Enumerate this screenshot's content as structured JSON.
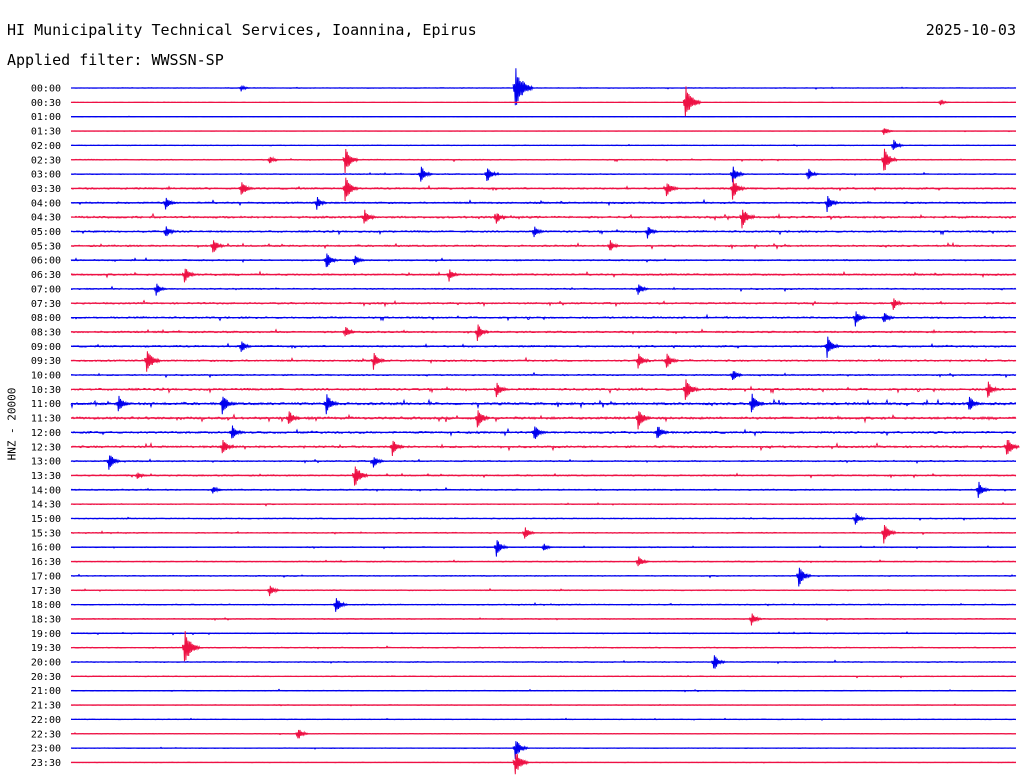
{
  "header": {
    "title": "HI Municipality Technical Services, Ioannina, Epirus",
    "date": "2025-10-03",
    "filter": "Applied filter: WWSSN-SP"
  },
  "colors": {
    "even_trace": "#0000ee",
    "odd_trace": "#ee1144",
    "text": "#000000",
    "background": "#ffffff"
  },
  "chart_data": {
    "type": "line",
    "title": "HI Municipality Technical Services, Ioannina, Epirus",
    "subtitle": "Applied filter: WWSSN-SP",
    "ylabel": "HNZ - 20000",
    "xlabel": "",
    "trace_colors": [
      "#0000ee",
      "#ee1144"
    ],
    "rows": [
      {
        "label": "00:00",
        "activity": 0.2,
        "events": [
          {
            "pos": 0.47,
            "amp": 1.0
          },
          {
            "pos": 0.18,
            "amp": 0.15
          }
        ]
      },
      {
        "label": "00:30",
        "activity": 0.1,
        "events": [
          {
            "pos": 0.65,
            "amp": 0.8
          },
          {
            "pos": 0.92,
            "amp": 0.15
          }
        ]
      },
      {
        "label": "01:00",
        "activity": 0.1,
        "events": []
      },
      {
        "label": "01:30",
        "activity": 0.12,
        "events": [
          {
            "pos": 0.86,
            "amp": 0.2
          }
        ]
      },
      {
        "label": "02:00",
        "activity": 0.2,
        "events": [
          {
            "pos": 0.87,
            "amp": 0.3
          }
        ]
      },
      {
        "label": "02:30",
        "activity": 0.3,
        "events": [
          {
            "pos": 0.29,
            "amp": 0.6
          },
          {
            "pos": 0.86,
            "amp": 0.6
          },
          {
            "pos": 0.21,
            "amp": 0.2
          }
        ]
      },
      {
        "label": "03:00",
        "activity": 0.3,
        "events": [
          {
            "pos": 0.37,
            "amp": 0.4
          },
          {
            "pos": 0.44,
            "amp": 0.4
          },
          {
            "pos": 0.7,
            "amp": 0.4
          },
          {
            "pos": 0.78,
            "amp": 0.3
          }
        ]
      },
      {
        "label": "03:30",
        "activity": 0.5,
        "events": [
          {
            "pos": 0.18,
            "amp": 0.4
          },
          {
            "pos": 0.29,
            "amp": 0.6
          },
          {
            "pos": 0.63,
            "amp": 0.4
          },
          {
            "pos": 0.7,
            "amp": 0.5
          }
        ]
      },
      {
        "label": "04:00",
        "activity": 0.5,
        "events": [
          {
            "pos": 0.1,
            "amp": 0.3
          },
          {
            "pos": 0.26,
            "amp": 0.3
          },
          {
            "pos": 0.8,
            "amp": 0.4
          }
        ]
      },
      {
        "label": "04:30",
        "activity": 0.6,
        "events": [
          {
            "pos": 0.31,
            "amp": 0.4
          },
          {
            "pos": 0.45,
            "amp": 0.3
          },
          {
            "pos": 0.71,
            "amp": 0.5
          }
        ]
      },
      {
        "label": "05:00",
        "activity": 0.5,
        "events": [
          {
            "pos": 0.1,
            "amp": 0.3
          },
          {
            "pos": 0.49,
            "amp": 0.3
          },
          {
            "pos": 0.61,
            "amp": 0.3
          }
        ]
      },
      {
        "label": "05:30",
        "activity": 0.5,
        "events": [
          {
            "pos": 0.15,
            "amp": 0.4
          },
          {
            "pos": 0.57,
            "amp": 0.3
          }
        ]
      },
      {
        "label": "06:00",
        "activity": 0.4,
        "events": [
          {
            "pos": 0.27,
            "amp": 0.4
          },
          {
            "pos": 0.3,
            "amp": 0.3
          }
        ]
      },
      {
        "label": "06:30",
        "activity": 0.5,
        "events": [
          {
            "pos": 0.12,
            "amp": 0.4
          },
          {
            "pos": 0.4,
            "amp": 0.3
          }
        ]
      },
      {
        "label": "07:00",
        "activity": 0.4,
        "events": [
          {
            "pos": 0.09,
            "amp": 0.3
          },
          {
            "pos": 0.6,
            "amp": 0.3
          }
        ]
      },
      {
        "label": "07:30",
        "activity": 0.5,
        "events": [
          {
            "pos": 0.87,
            "amp": 0.3
          }
        ]
      },
      {
        "label": "08:00",
        "activity": 0.5,
        "events": [
          {
            "pos": 0.83,
            "amp": 0.4
          },
          {
            "pos": 0.86,
            "amp": 0.3
          }
        ]
      },
      {
        "label": "08:30",
        "activity": 0.5,
        "events": [
          {
            "pos": 0.43,
            "amp": 0.4
          },
          {
            "pos": 0.29,
            "amp": 0.3
          }
        ]
      },
      {
        "label": "09:00",
        "activity": 0.5,
        "events": [
          {
            "pos": 0.18,
            "amp": 0.3
          },
          {
            "pos": 0.8,
            "amp": 0.5
          }
        ]
      },
      {
        "label": "09:30",
        "activity": 0.5,
        "events": [
          {
            "pos": 0.08,
            "amp": 0.6
          },
          {
            "pos": 0.32,
            "amp": 0.4
          },
          {
            "pos": 0.6,
            "amp": 0.4
          },
          {
            "pos": 0.63,
            "amp": 0.4
          }
        ]
      },
      {
        "label": "10:00",
        "activity": 0.4,
        "events": [
          {
            "pos": 0.7,
            "amp": 0.3
          }
        ]
      },
      {
        "label": "10:30",
        "activity": 0.6,
        "events": [
          {
            "pos": 0.45,
            "amp": 0.4
          },
          {
            "pos": 0.65,
            "amp": 0.6
          },
          {
            "pos": 0.97,
            "amp": 0.4
          }
        ]
      },
      {
        "label": "11:00",
        "activity": 0.7,
        "events": [
          {
            "pos": 0.05,
            "amp": 0.4
          },
          {
            "pos": 0.16,
            "amp": 0.5
          },
          {
            "pos": 0.27,
            "amp": 0.5
          },
          {
            "pos": 0.72,
            "amp": 0.5
          },
          {
            "pos": 0.95,
            "amp": 0.4
          }
        ]
      },
      {
        "label": "11:30",
        "activity": 0.7,
        "events": [
          {
            "pos": 0.23,
            "amp": 0.4
          },
          {
            "pos": 0.43,
            "amp": 0.5
          },
          {
            "pos": 0.6,
            "amp": 0.5
          }
        ]
      },
      {
        "label": "12:00",
        "activity": 0.6,
        "events": [
          {
            "pos": 0.17,
            "amp": 0.4
          },
          {
            "pos": 0.49,
            "amp": 0.4
          },
          {
            "pos": 0.62,
            "amp": 0.4
          }
        ]
      },
      {
        "label": "12:30",
        "activity": 0.6,
        "events": [
          {
            "pos": 0.16,
            "amp": 0.4
          },
          {
            "pos": 0.34,
            "amp": 0.4
          },
          {
            "pos": 0.99,
            "amp": 0.5
          }
        ]
      },
      {
        "label": "13:00",
        "activity": 0.4,
        "events": [
          {
            "pos": 0.04,
            "amp": 0.4
          },
          {
            "pos": 0.32,
            "amp": 0.3
          }
        ]
      },
      {
        "label": "13:30",
        "activity": 0.4,
        "events": [
          {
            "pos": 0.3,
            "amp": 0.6
          },
          {
            "pos": 0.07,
            "amp": 0.2
          }
        ]
      },
      {
        "label": "14:00",
        "activity": 0.4,
        "events": [
          {
            "pos": 0.96,
            "amp": 0.4
          },
          {
            "pos": 0.15,
            "amp": 0.2
          }
        ]
      },
      {
        "label": "14:30",
        "activity": 0.3,
        "events": []
      },
      {
        "label": "15:00",
        "activity": 0.3,
        "events": [
          {
            "pos": 0.83,
            "amp": 0.3
          }
        ]
      },
      {
        "label": "15:30",
        "activity": 0.3,
        "events": [
          {
            "pos": 0.48,
            "amp": 0.3
          },
          {
            "pos": 0.86,
            "amp": 0.5
          }
        ]
      },
      {
        "label": "16:00",
        "activity": 0.3,
        "events": [
          {
            "pos": 0.45,
            "amp": 0.4
          },
          {
            "pos": 0.5,
            "amp": 0.2
          }
        ]
      },
      {
        "label": "16:30",
        "activity": 0.3,
        "events": [
          {
            "pos": 0.6,
            "amp": 0.3
          }
        ]
      },
      {
        "label": "17:00",
        "activity": 0.3,
        "events": [
          {
            "pos": 0.77,
            "amp": 0.5
          }
        ]
      },
      {
        "label": "17:30",
        "activity": 0.3,
        "events": [
          {
            "pos": 0.21,
            "amp": 0.3
          }
        ]
      },
      {
        "label": "18:00",
        "activity": 0.3,
        "events": [
          {
            "pos": 0.28,
            "amp": 0.4
          }
        ]
      },
      {
        "label": "18:30",
        "activity": 0.3,
        "events": [
          {
            "pos": 0.72,
            "amp": 0.3
          }
        ]
      },
      {
        "label": "19:00",
        "activity": 0.3,
        "events": []
      },
      {
        "label": "19:30",
        "activity": 0.3,
        "events": [
          {
            "pos": 0.12,
            "amp": 0.8
          }
        ]
      },
      {
        "label": "20:00",
        "activity": 0.3,
        "events": [
          {
            "pos": 0.68,
            "amp": 0.4
          }
        ]
      },
      {
        "label": "20:30",
        "activity": 0.25,
        "events": []
      },
      {
        "label": "21:00",
        "activity": 0.25,
        "events": []
      },
      {
        "label": "21:30",
        "activity": 0.2,
        "events": []
      },
      {
        "label": "22:00",
        "activity": 0.2,
        "events": []
      },
      {
        "label": "22:30",
        "activity": 0.2,
        "events": [
          {
            "pos": 0.24,
            "amp": 0.3
          }
        ]
      },
      {
        "label": "23:00",
        "activity": 0.2,
        "events": [
          {
            "pos": 0.47,
            "amp": 0.5
          }
        ]
      },
      {
        "label": "23:30",
        "activity": 0.15,
        "events": [
          {
            "pos": 0.47,
            "amp": 0.6
          }
        ]
      }
    ]
  }
}
